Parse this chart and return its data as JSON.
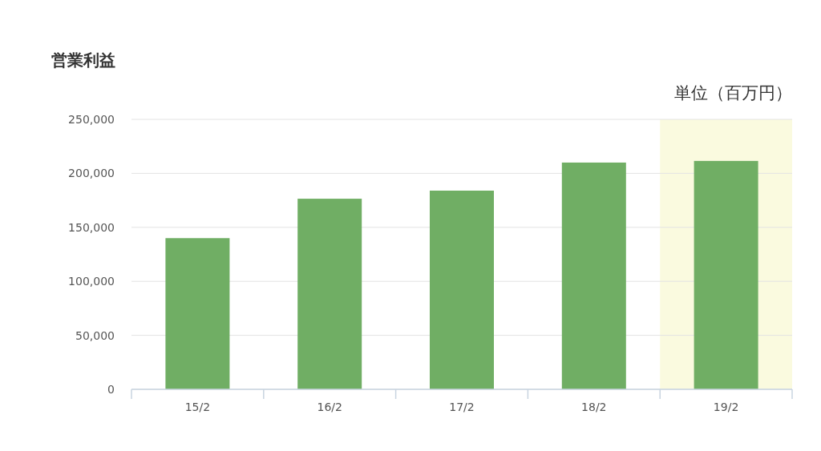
{
  "chart_data": {
    "type": "bar",
    "title": "営業利益",
    "annotations": [
      "単位（百万円）"
    ],
    "categories": [
      "15/2",
      "16/2",
      "17/2",
      "18/2",
      "19/2"
    ],
    "values": [
      140000,
      176500,
      184000,
      210000,
      211500
    ],
    "color": "#70ae64",
    "ylim": [
      0,
      250000
    ],
    "yticks": [
      {
        "value": 0,
        "label": "0"
      },
      {
        "value": 50000,
        "label": "50,000"
      },
      {
        "value": 100000,
        "label": "100,000"
      },
      {
        "value": 150000,
        "label": "150,000"
      },
      {
        "value": 200000,
        "label": "200,000"
      },
      {
        "value": 250000,
        "label": "250,000"
      }
    ],
    "grid": "y",
    "bands": [
      {
        "axis": "x",
        "from": "19/2",
        "to": "19/2",
        "color": "#fafadf"
      }
    ]
  }
}
